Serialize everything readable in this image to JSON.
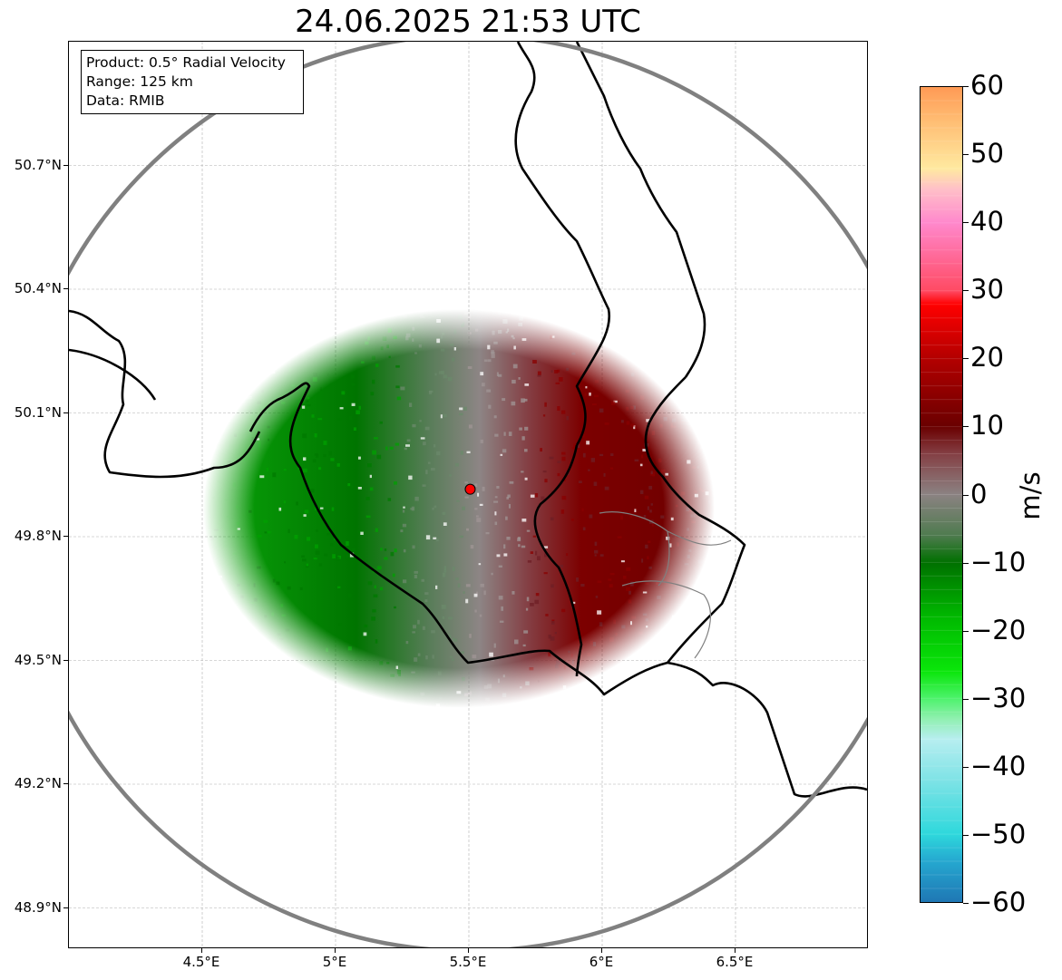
{
  "title": "24.06.2025 21:53 UTC",
  "info_box": {
    "product": "Product: 0.5° Radial Velocity",
    "range": "Range: 125 km",
    "data": "Data: RMIB"
  },
  "map_extent": {
    "lon_min": 4.0,
    "lon_max": 7.0,
    "lat_min": 48.8,
    "lat_max": 51.0
  },
  "lat_ticks": [
    {
      "value": 50.7,
      "label": "50.7°N"
    },
    {
      "value": 50.4,
      "label": "50.4°N"
    },
    {
      "value": 50.1,
      "label": "50.1°N"
    },
    {
      "value": 49.8,
      "label": "49.8°N"
    },
    {
      "value": 49.5,
      "label": "49.5°N"
    },
    {
      "value": 49.2,
      "label": "49.2°N"
    },
    {
      "value": 48.9,
      "label": "48.9°N"
    }
  ],
  "lon_ticks": [
    {
      "value": 4.5,
      "label": "4.5°E"
    },
    {
      "value": 5.0,
      "label": "5°E"
    },
    {
      "value": 5.5,
      "label": "5.5°E"
    },
    {
      "value": 6.0,
      "label": "6°E"
    },
    {
      "value": 6.5,
      "label": "6.5°E"
    }
  ],
  "radar_site": {
    "lon": 5.505,
    "lat": 49.915,
    "color": "#ff0000"
  },
  "range_ring_color": "#808080",
  "colorbar": {
    "unit": "m/s",
    "min": -60,
    "max": 60,
    "ticks": [
      {
        "value": 60,
        "label": "60"
      },
      {
        "value": 50,
        "label": "50"
      },
      {
        "value": 40,
        "label": "40"
      },
      {
        "value": 30,
        "label": "30"
      },
      {
        "value": 20,
        "label": "20"
      },
      {
        "value": 10,
        "label": "10"
      },
      {
        "value": 0,
        "label": "0"
      },
      {
        "value": -10,
        "label": "−10"
      },
      {
        "value": -20,
        "label": "−20"
      },
      {
        "value": -30,
        "label": "−30"
      },
      {
        "value": -40,
        "label": "−40"
      },
      {
        "value": -50,
        "label": "−50"
      },
      {
        "value": -60,
        "label": "−60"
      }
    ],
    "stops": [
      {
        "value": -60,
        "color": "#1f77b4"
      },
      {
        "value": -54,
        "color": "#25a8d0"
      },
      {
        "value": -50,
        "color": "#2ed8dc"
      },
      {
        "value": -42,
        "color": "#7fe3e6"
      },
      {
        "value": -36,
        "color": "#b7eef0"
      },
      {
        "value": -33,
        "color": "#90f0b0"
      },
      {
        "value": -30,
        "color": "#4cf26b"
      },
      {
        "value": -26,
        "color": "#0ae60a"
      },
      {
        "value": -18,
        "color": "#00b800"
      },
      {
        "value": -10,
        "color": "#007000"
      },
      {
        "value": -6,
        "color": "#4f7b4f"
      },
      {
        "value": 0,
        "color": "#8b8282"
      },
      {
        "value": 6,
        "color": "#843f44"
      },
      {
        "value": 10,
        "color": "#6a0000"
      },
      {
        "value": 20,
        "color": "#b30000"
      },
      {
        "value": 28,
        "color": "#ff0000"
      },
      {
        "value": 30,
        "color": "#ff4a63"
      },
      {
        "value": 40,
        "color": "#ff88cc"
      },
      {
        "value": 45,
        "color": "#ffc0c8"
      },
      {
        "value": 48,
        "color": "#ffe9a0"
      },
      {
        "value": 55,
        "color": "#ffbd73"
      },
      {
        "value": 60,
        "color": "#ff9a55"
      }
    ]
  }
}
